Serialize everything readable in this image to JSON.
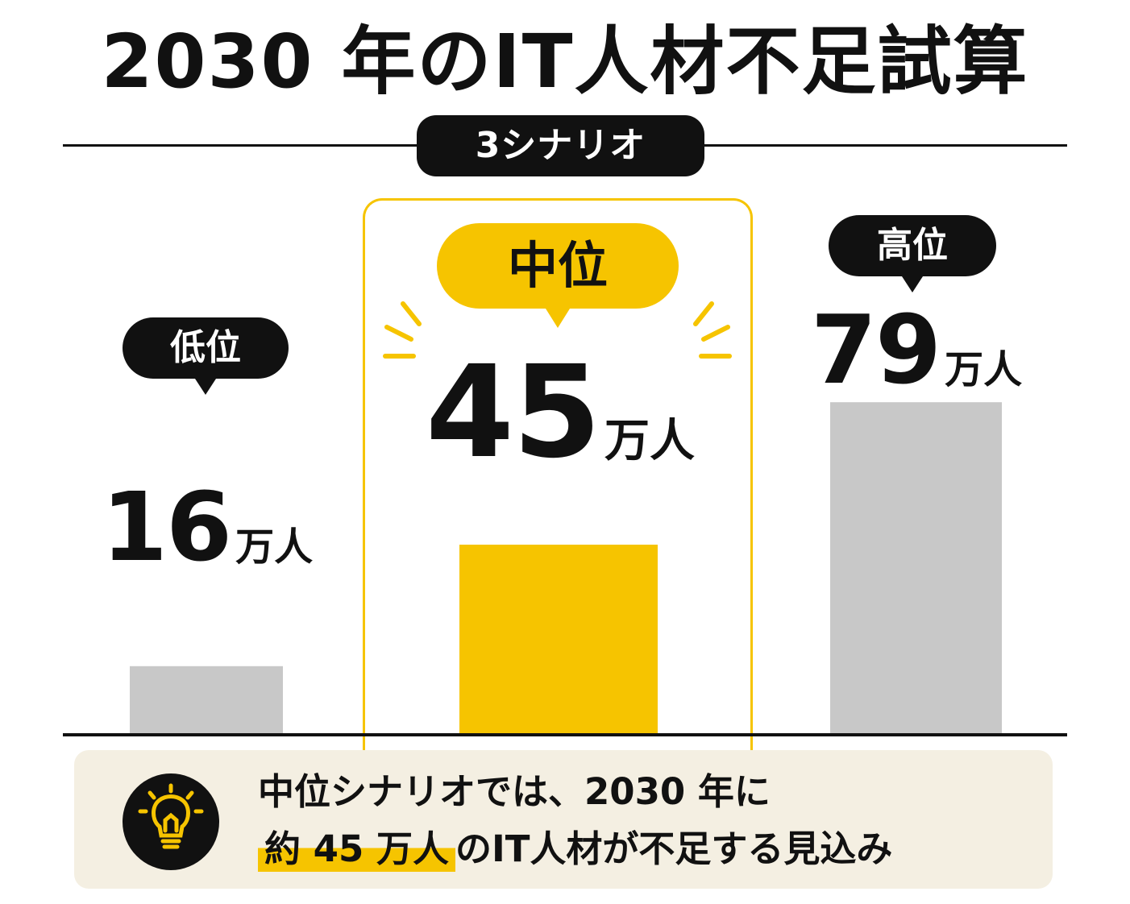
{
  "title": "2030 年のIT人材不足試算",
  "subtitle": "3シナリオ",
  "colors": {
    "highlight": "#f6c400",
    "bar_default": "#c8c8c8",
    "ink": "#111111",
    "note_bg": "#f4efe2"
  },
  "chart_data": {
    "type": "bar",
    "title": "2030 年のIT人材不足試算",
    "subtitle": "3シナリオ",
    "categories": [
      "低位",
      "中位",
      "高位"
    ],
    "values": [
      16,
      45,
      79
    ],
    "unit": "万人",
    "value_labels": [
      "16",
      "45",
      "79"
    ],
    "highlight_index": 1,
    "ylim": [
      0,
      100
    ],
    "grid": false,
    "legend": "none"
  },
  "note": {
    "icon": "lightbulb-icon",
    "line1": "中位シナリオでは、2030 年に",
    "line2_emphasis": "約 45 万人",
    "line2_rest": "のIT人材が不足する見込み"
  }
}
